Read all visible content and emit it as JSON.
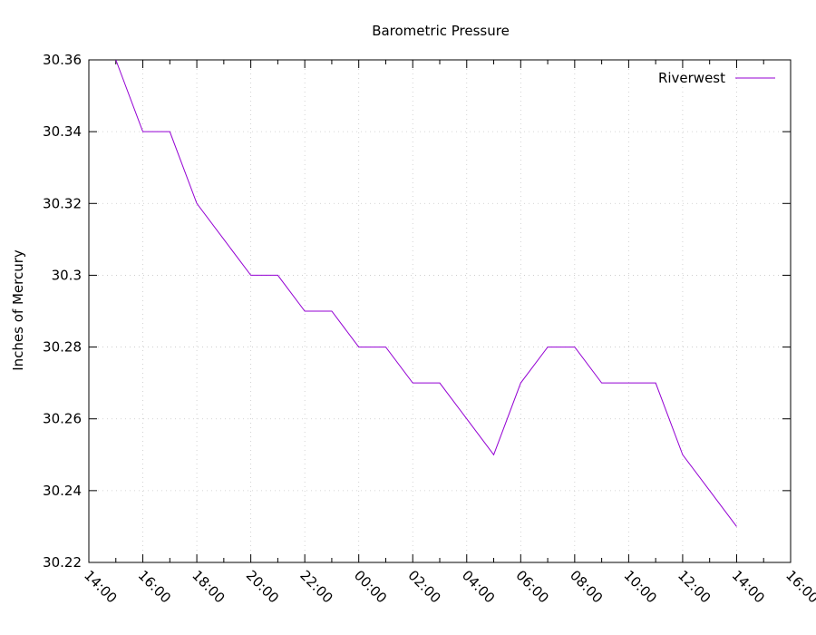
{
  "chart_data": {
    "type": "line",
    "title": "Barometric Pressure",
    "ylabel": "Inches of Mercury",
    "xlabel": "",
    "ylim": [
      30.22,
      30.36
    ],
    "y_ticks": [
      "30.22",
      "30.24",
      "30.26",
      "30.28",
      "30.3",
      "30.32",
      "30.34",
      "30.36"
    ],
    "x_tick_labels": [
      "14:00",
      "16:00",
      "18:00",
      "20:00",
      "22:00",
      "00:00",
      "02:00",
      "04:00",
      "06:00",
      "08:00",
      "10:00",
      "12:00",
      "14:00",
      "16:00"
    ],
    "x_minor_ticks_per_major": 2,
    "grid": true,
    "legend_position": "top-right",
    "series": [
      {
        "name": "Riverwest",
        "color": "#9400d3",
        "x": [
          "15:00",
          "16:00",
          "17:00",
          "18:00",
          "19:00",
          "20:00",
          "21:00",
          "22:00",
          "23:00",
          "00:00",
          "01:00",
          "02:00",
          "03:00",
          "04:00",
          "05:00",
          "06:00",
          "07:00",
          "08:00",
          "09:00",
          "10:00",
          "11:00",
          "12:00",
          "13:00",
          "14:00"
        ],
        "values": [
          30.36,
          30.34,
          30.34,
          30.32,
          30.31,
          30.3,
          30.3,
          30.29,
          30.29,
          30.28,
          30.28,
          30.27,
          30.27,
          30.26,
          30.25,
          30.27,
          30.28,
          30.28,
          30.27,
          30.27,
          30.27,
          30.25,
          30.24,
          30.23
        ]
      }
    ]
  }
}
